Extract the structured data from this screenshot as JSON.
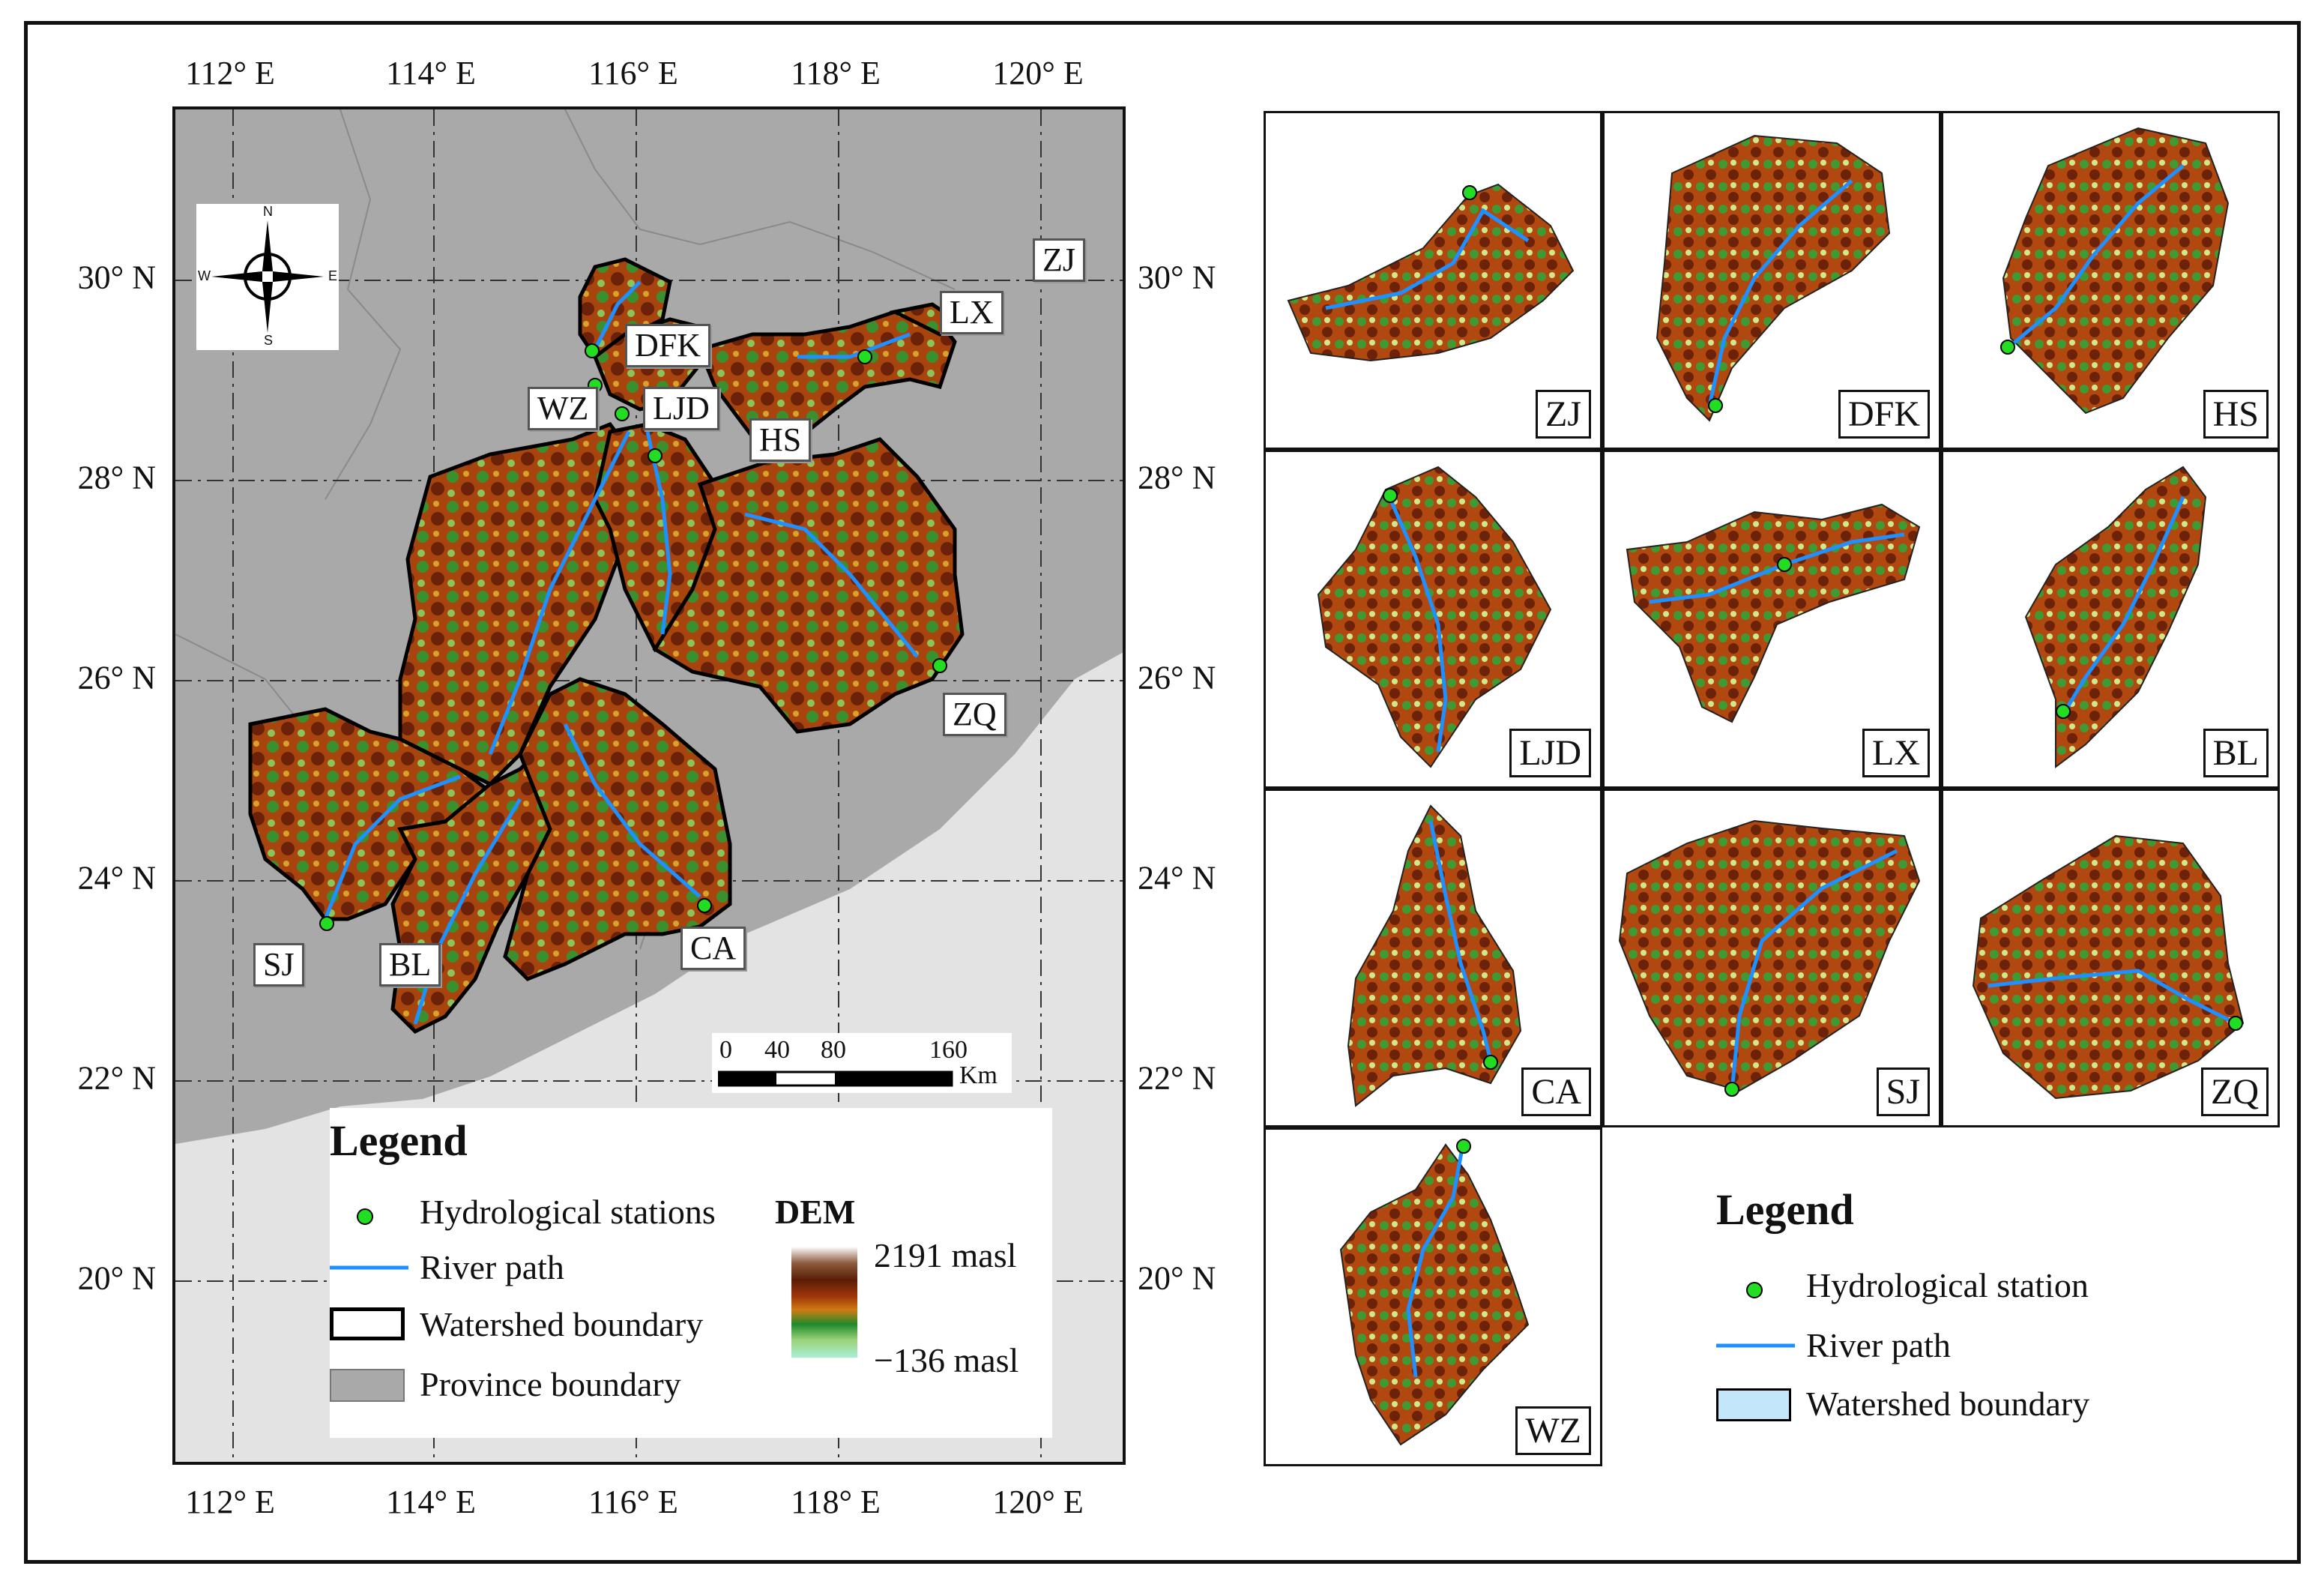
{
  "main_map": {
    "lon_labels_top": [
      "112° E",
      "114° E",
      "116° E",
      "118° E",
      "120° E"
    ],
    "lon_labels_bottom": [
      "112° E",
      "114° E",
      "116° E",
      "118° E",
      "120° E"
    ],
    "lat_labels_left": [
      "30° N",
      "28° N",
      "26° N",
      "24° N",
      "22° N",
      "20° N"
    ],
    "lat_labels_right": [
      "30° N",
      "28° N",
      "26° N",
      "24° N",
      "22° N",
      "20° N"
    ],
    "compass": {
      "n": "N",
      "s": "S",
      "e": "E",
      "w": "W",
      "icon": "compass-rose-icon"
    },
    "stations": [
      "ZJ",
      "LX",
      "DFK",
      "HS",
      "WZ",
      "LJD",
      "ZQ",
      "SJ",
      "BL",
      "CA"
    ],
    "scale": {
      "ticks": [
        "0",
        "40",
        "80",
        "160"
      ],
      "unit": "Km"
    },
    "legend": {
      "title": "Legend",
      "station": "Hydrological stations",
      "river": "River path",
      "watershed": "Watershed boundary",
      "province": "Province boundary",
      "dem_title": "DEM",
      "dem_max": "2191 masl",
      "dem_min": "−136 masl"
    },
    "colors": {
      "sea": "#e3e3e3",
      "land": "#a9a9a9",
      "river": "#1e90ff",
      "station": "#22dd22"
    }
  },
  "subpanels": [
    "ZJ",
    "DFK",
    "HS",
    "LJD",
    "LX",
    "BL",
    "CA",
    "SJ",
    "ZQ",
    "WZ"
  ],
  "legend2": {
    "title": "Legend",
    "station": "Hydrological station",
    "river": "River path",
    "watershed": "Watershed boundary"
  }
}
